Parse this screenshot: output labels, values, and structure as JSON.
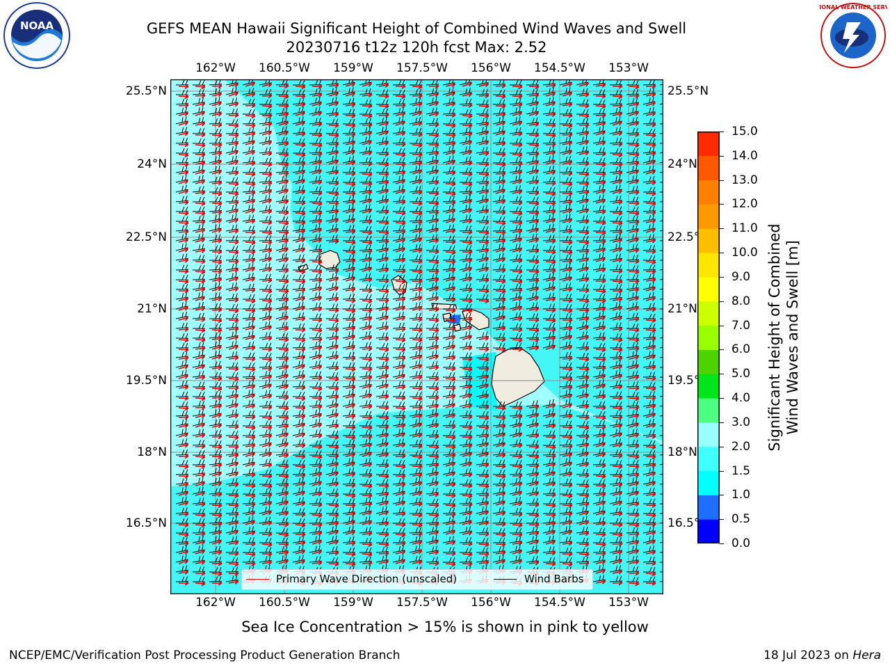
{
  "title": {
    "line1": "GEFS MEAN Hawaii Significant Height of Combined Wind Waves and Swell",
    "line2": "20230716 t12z 120h fcst   Max: 2.52"
  },
  "logos": {
    "left": {
      "name": "noaa-logo",
      "text": "NOAA"
    },
    "right": {
      "name": "nws-logo",
      "text": "NATIONAL WEATHER SERVICE"
    }
  },
  "lon_labels": [
    "162°W",
    "160.5°W",
    "159°W",
    "157.5°W",
    "156°W",
    "154.5°W",
    "153°W"
  ],
  "lat_labels": [
    "25.5°N",
    "24°N",
    "22.5°N",
    "21°N",
    "19.5°N",
    "18°N",
    "16.5°N"
  ],
  "colorbar": {
    "title_line1": "Significant Height of Combined",
    "title_line2": "Wind Waves and Swell [m]",
    "tick_labels": [
      "0.0",
      "0.5",
      "1.0",
      "1.5",
      "2.0",
      "3.0",
      "4.0",
      "5.0",
      "6.0",
      "7.0",
      "8.0",
      "9.0",
      "10.0",
      "11.0",
      "12.0",
      "13.0",
      "14.0",
      "15.0"
    ],
    "colors": [
      "#0000ff",
      "#1e6fff",
      "#00ffff",
      "#40ffff",
      "#99ffff",
      "#4cff80",
      "#00e61a",
      "#4cd300",
      "#99ff00",
      "#ccff00",
      "#ffff00",
      "#ffe600",
      "#ffbf00",
      "#ff9900",
      "#ff8000",
      "#ff5900",
      "#ff2a00",
      "#ff0000"
    ]
  },
  "legend": {
    "wave_label": "Primary Wave Direction (unscaled)",
    "barb_label": "Wind Barbs",
    "wave_color": "#e00000",
    "barb_color": "#000000"
  },
  "colors": {
    "ocean_main": "#44f6f6",
    "ocean_light": "#a0ffff",
    "land": "#efece0",
    "barb": "#000000",
    "wave_arrow": "#e00000"
  },
  "note": "Sea Ice Concentration > 15% is shown in pink to yellow",
  "footer": {
    "left": "NCEP/EMC/Verification Post Processing Product Generation Branch",
    "right_prefix": "18 Jul 2023 on ",
    "right_host": "Hera"
  }
}
